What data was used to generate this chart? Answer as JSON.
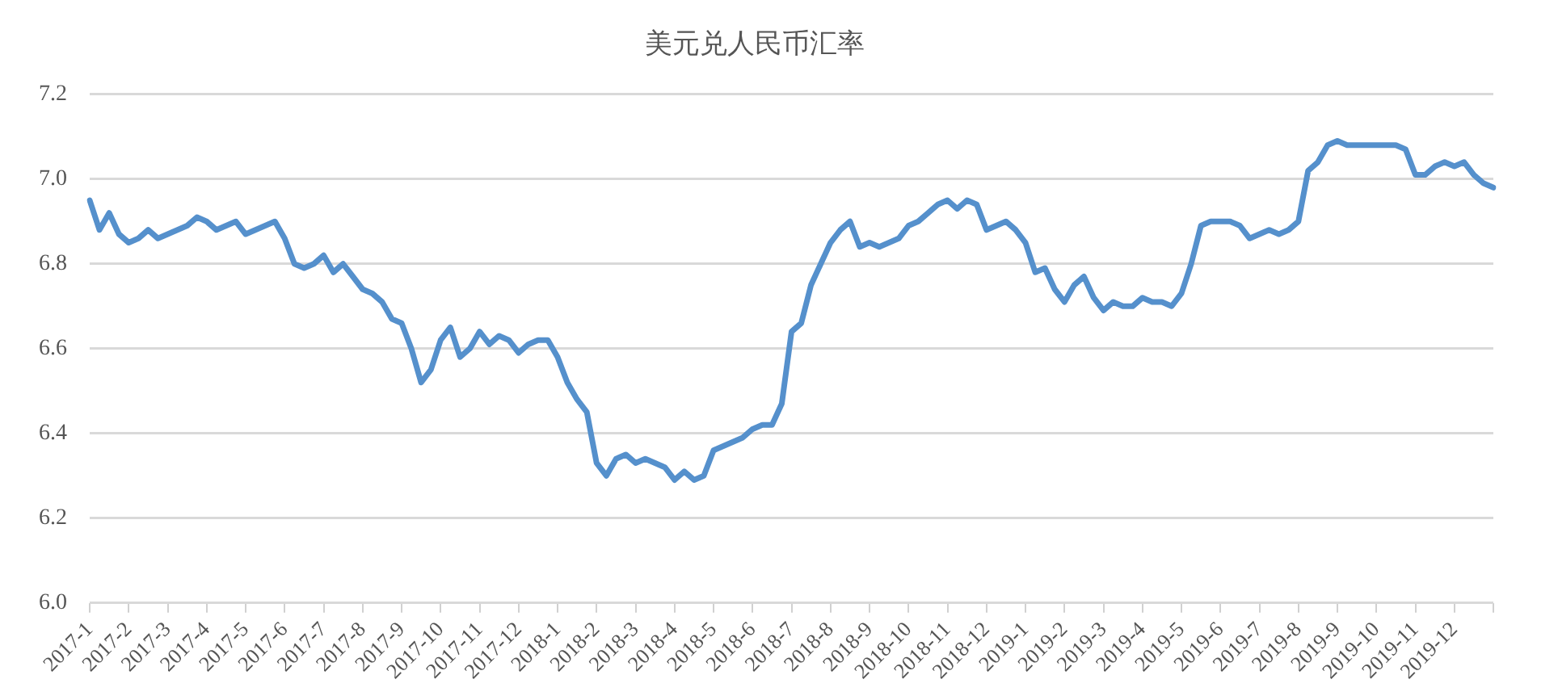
{
  "chart_data": {
    "type": "line",
    "title": "美元兑人民币汇率",
    "categories": [
      "2017-1",
      null,
      null,
      null,
      "2017-2",
      null,
      null,
      null,
      "2017-3",
      null,
      null,
      null,
      "2017-4",
      null,
      null,
      null,
      "2017-5",
      null,
      null,
      null,
      "2017-6",
      null,
      null,
      null,
      "2017-7",
      null,
      null,
      null,
      "2017-8",
      null,
      null,
      null,
      "2017-9",
      null,
      null,
      null,
      "2017-10",
      null,
      null,
      null,
      "2017-11",
      null,
      null,
      null,
      "2017-12",
      null,
      null,
      null,
      "2018-1",
      null,
      null,
      null,
      "2018-2",
      null,
      null,
      null,
      "2018-3",
      null,
      null,
      null,
      "2018-4",
      null,
      null,
      null,
      "2018-5",
      null,
      null,
      null,
      "2018-6",
      null,
      null,
      null,
      "2018-7",
      null,
      null,
      null,
      "2018-8",
      null,
      null,
      null,
      "2018-9",
      null,
      null,
      null,
      "2018-10",
      null,
      null,
      null,
      "2018-11",
      null,
      null,
      null,
      "2018-12",
      null,
      null,
      null,
      "2019-1",
      null,
      null,
      null,
      "2019-2",
      null,
      null,
      null,
      "2019-3",
      null,
      null,
      null,
      "2019-4",
      null,
      null,
      null,
      "2019-5",
      null,
      null,
      null,
      "2019-6",
      null,
      null,
      null,
      "2019-7",
      null,
      null,
      null,
      "2019-8",
      null,
      null,
      null,
      "2019-9",
      null,
      null,
      null,
      "2019-10",
      null,
      null,
      null,
      "2019-11",
      null,
      null,
      null,
      "2019-12",
      null,
      null,
      null,
      null
    ],
    "series": [
      {
        "color": "#5590cc",
        "values": [
          6.95,
          6.88,
          6.92,
          6.87,
          6.85,
          6.86,
          6.88,
          6.86,
          6.87,
          6.88,
          6.89,
          6.91,
          6.9,
          6.88,
          6.89,
          6.9,
          6.87,
          6.88,
          6.89,
          6.9,
          6.86,
          6.8,
          6.79,
          6.8,
          6.82,
          6.78,
          6.8,
          6.77,
          6.74,
          6.73,
          6.71,
          6.67,
          6.66,
          6.6,
          6.52,
          6.55,
          6.62,
          6.65,
          6.58,
          6.6,
          6.64,
          6.61,
          6.63,
          6.62,
          6.59,
          6.61,
          6.62,
          6.62,
          6.58,
          6.52,
          6.48,
          6.45,
          6.33,
          6.3,
          6.34,
          6.35,
          6.33,
          6.34,
          6.33,
          6.32,
          6.29,
          6.31,
          6.29,
          6.3,
          6.36,
          6.37,
          6.38,
          6.39,
          6.41,
          6.42,
          6.42,
          6.47,
          6.64,
          6.66,
          6.75,
          6.8,
          6.85,
          6.88,
          6.9,
          6.84,
          6.85,
          6.84,
          6.85,
          6.86,
          6.89,
          6.9,
          6.92,
          6.94,
          6.95,
          6.93,
          6.95,
          6.94,
          6.88,
          6.89,
          6.9,
          6.88,
          6.85,
          6.78,
          6.79,
          6.74,
          6.71,
          6.75,
          6.77,
          6.72,
          6.69,
          6.71,
          6.7,
          6.7,
          6.72,
          6.71,
          6.71,
          6.7,
          6.73,
          6.8,
          6.89,
          6.9,
          6.9,
          6.9,
          6.89,
          6.86,
          6.87,
          6.88,
          6.87,
          6.88,
          6.9,
          7.02,
          7.04,
          7.08,
          7.09,
          7.08,
          7.08,
          7.08,
          7.08,
          7.08,
          7.08,
          7.07,
          7.01,
          7.01,
          7.03,
          7.04,
          7.03,
          7.04,
          7.01,
          6.99,
          6.98
        ]
      }
    ],
    "ylim": [
      6,
      7.2
    ],
    "yticks": [
      {
        "value": 6,
        "label": "6.0"
      },
      {
        "value": 6.2,
        "label": "6.2"
      },
      {
        "value": 6.4,
        "label": "6.4"
      },
      {
        "value": 6.6,
        "label": "6.6"
      },
      {
        "value": 6.8,
        "label": "6.8"
      },
      {
        "value": 7,
        "label": "7.0"
      },
      {
        "value": 7.2,
        "label": "7.2"
      }
    ],
    "grid": "y",
    "legend": false,
    "marker": "none",
    "line_style": "solid"
  }
}
